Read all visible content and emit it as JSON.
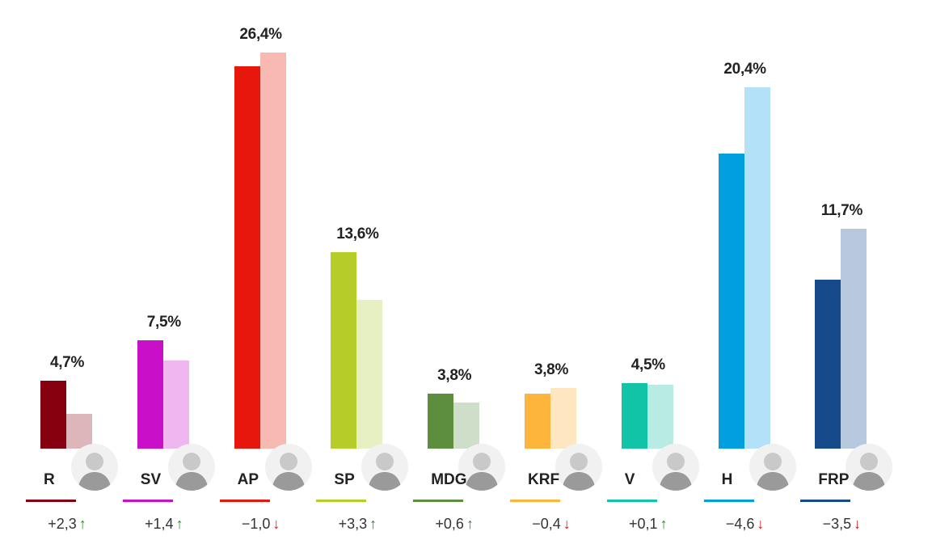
{
  "chart_data": {
    "type": "bar",
    "title": "",
    "xlabel": "",
    "ylabel": "",
    "ylim": [
      0,
      27
    ],
    "grid": false,
    "legend": "none",
    "categories": [
      "R",
      "SV",
      "AP",
      "SP",
      "MDG",
      "KRF",
      "V",
      "H",
      "FRP"
    ],
    "series": [
      {
        "values": [
          4.7,
          7.5,
          26.4,
          13.6,
          3.8,
          3.8,
          4.5,
          20.4,
          11.7
        ]
      },
      {
        "values": [
          2.4,
          6.1,
          27.4,
          10.3,
          3.2,
          4.2,
          4.4,
          25.0,
          15.2
        ]
      }
    ],
    "value_labels": [
      "4,7%",
      "7,5%",
      "26,4%",
      "13,6%",
      "3,8%",
      "3,8%",
      "4,5%",
      "20,4%",
      "11,7%"
    ],
    "changes": [
      "+2,3",
      "+1,4",
      "−1,0",
      "+3,3",
      "+0,6",
      "−0,4",
      "+0,1",
      "−4,6",
      "−3,5"
    ],
    "change_direction": [
      "up",
      "up",
      "down",
      "up",
      "up",
      "down",
      "up",
      "down",
      "down"
    ],
    "colors": [
      {
        "main": "#86000f",
        "prev": "#ddb6bb"
      },
      {
        "main": "#c90fc7",
        "prev": "#efb6ef"
      },
      {
        "main": "#e7170c",
        "prev": "#f7b9b2"
      },
      {
        "main": "#b6cc29",
        "prev": "#e7f0c3"
      },
      {
        "main": "#5c8e3e",
        "prev": "#cfdec8"
      },
      {
        "main": "#feb53b",
        "prev": "#fee6c1"
      },
      {
        "main": "#12c4a7",
        "prev": "#b8ebe2"
      },
      {
        "main": "#019ee0",
        "prev": "#b3e1f7"
      },
      {
        "main": "#174a8b",
        "prev": "#b8c8df"
      }
    ],
    "up_color": "#2e8b2e",
    "down_color": "#d0141c",
    "icons": {
      "avatar": "person-portrait-icon",
      "up": "arrow-up-icon",
      "down": "arrow-down-icon"
    }
  }
}
